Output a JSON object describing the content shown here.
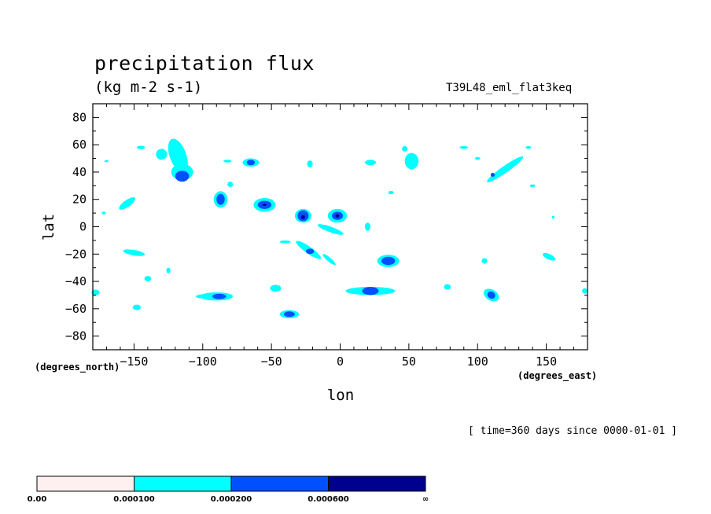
{
  "chart_data": {
    "type": "contour",
    "title": "precipitation flux",
    "units": "(kg m-2 s-1)",
    "experiment": "T39L48_eml_flat3keq",
    "xlabel": "lon",
    "ylabel": "lat",
    "x_unit": "(degrees_east)",
    "y_unit": "(degrees_north)",
    "xlim": [
      -180,
      180
    ],
    "ylim": [
      -90,
      90
    ],
    "x_ticks": [
      -150,
      -100,
      -50,
      0,
      50,
      100,
      150
    ],
    "y_ticks": [
      80,
      60,
      40,
      20,
      0,
      -20,
      -40,
      -60,
      -80
    ],
    "time_note": "[ time=360 days since 0000-01-01 ]",
    "colorbar": {
      "colors": [
        "#fff0f0",
        "#00ffff",
        "#0050ff",
        "#000090"
      ],
      "labels": [
        "0.00",
        "0.000100",
        "0.000200",
        "0.000600",
        "∞"
      ]
    },
    "features": [
      {
        "lon": -118,
        "lat": 52,
        "rx": 6,
        "ry": 13,
        "rot": -20,
        "level": 1
      },
      {
        "lon": -115,
        "lat": 40,
        "rx": 8,
        "ry": 6,
        "rot": 0,
        "level": 1
      },
      {
        "lon": -115,
        "lat": 37,
        "rx": 5,
        "ry": 4,
        "rot": 0,
        "level": 2
      },
      {
        "lon": -130,
        "lat": 53,
        "rx": 4,
        "ry": 4,
        "rot": 0,
        "level": 1
      },
      {
        "lon": -145,
        "lat": 58,
        "rx": 3,
        "ry": 1.2,
        "rot": 0,
        "level": 1
      },
      {
        "lon": -155,
        "lat": 17,
        "rx": 7,
        "ry": 2.5,
        "rot": -35,
        "level": 1
      },
      {
        "lon": -87,
        "lat": 20,
        "rx": 5,
        "ry": 6,
        "rot": 0,
        "level": 1
      },
      {
        "lon": -87,
        "lat": 20,
        "rx": 3,
        "ry": 4,
        "rot": 0,
        "level": 2
      },
      {
        "lon": -80,
        "lat": 31,
        "rx": 2,
        "ry": 2,
        "rot": 0,
        "level": 1
      },
      {
        "lon": -65,
        "lat": 47,
        "rx": 6,
        "ry": 3,
        "rot": 0,
        "level": 1
      },
      {
        "lon": -65,
        "lat": 47,
        "rx": 3,
        "ry": 2,
        "rot": 0,
        "level": 2
      },
      {
        "lon": -55,
        "lat": 16,
        "rx": 8,
        "ry": 5,
        "rot": 0,
        "level": 1
      },
      {
        "lon": -55,
        "lat": 16,
        "rx": 5,
        "ry": 3,
        "rot": 0,
        "level": 2
      },
      {
        "lon": -55,
        "lat": 16,
        "rx": 1.5,
        "ry": 0.8,
        "rot": 0,
        "level": 3
      },
      {
        "lon": -27,
        "lat": 8,
        "rx": 6,
        "ry": 5,
        "rot": 0,
        "level": 1
      },
      {
        "lon": -27,
        "lat": 8,
        "rx": 4,
        "ry": 4,
        "rot": 0,
        "level": 2
      },
      {
        "lon": -27,
        "lat": 7,
        "rx": 1.5,
        "ry": 1.5,
        "rot": 0,
        "level": 3
      },
      {
        "lon": -2,
        "lat": 8,
        "rx": 7,
        "ry": 5,
        "rot": 0,
        "level": 1
      },
      {
        "lon": -2,
        "lat": 8,
        "rx": 4,
        "ry": 3,
        "rot": 0,
        "level": 2
      },
      {
        "lon": -2,
        "lat": 8,
        "rx": 1.5,
        "ry": 1.2,
        "rot": 0,
        "level": 3
      },
      {
        "lon": -7,
        "lat": -2,
        "rx": 10,
        "ry": 2,
        "rot": 20,
        "level": 1
      },
      {
        "lon": -23,
        "lat": -17,
        "rx": 11,
        "ry": 2.5,
        "rot": 35,
        "level": 1
      },
      {
        "lon": -22,
        "lat": -18,
        "rx": 3,
        "ry": 2,
        "rot": 0,
        "level": 2
      },
      {
        "lon": -8,
        "lat": -24,
        "rx": 6,
        "ry": 1.5,
        "rot": 40,
        "level": 1
      },
      {
        "lon": 35,
        "lat": -25,
        "rx": 8,
        "ry": 4.5,
        "rot": 0,
        "level": 1
      },
      {
        "lon": 35,
        "lat": -25,
        "rx": 5,
        "ry": 3,
        "rot": 0,
        "level": 2
      },
      {
        "lon": 22,
        "lat": -47,
        "rx": 18,
        "ry": 3,
        "rot": 0,
        "level": 1
      },
      {
        "lon": 22,
        "lat": -47,
        "rx": 6,
        "ry": 3,
        "rot": 0,
        "level": 2
      },
      {
        "lon": -90,
        "lat": -51,
        "rx": 12,
        "ry": 3,
        "rot": 0,
        "level": 1
      },
      {
        "lon": -88,
        "lat": -51,
        "rx": 5,
        "ry": 2,
        "rot": 0,
        "level": 2
      },
      {
        "lon": -37,
        "lat": -64,
        "rx": 7,
        "ry": 3,
        "rot": 0,
        "level": 1
      },
      {
        "lon": -37,
        "lat": -64,
        "rx": 4,
        "ry": 2,
        "rot": 0,
        "level": 2
      },
      {
        "lon": 110,
        "lat": -50,
        "rx": 6,
        "ry": 4,
        "rot": 30,
        "level": 1
      },
      {
        "lon": 110,
        "lat": -50,
        "rx": 3,
        "ry": 2.5,
        "rot": 30,
        "level": 2
      },
      {
        "lon": 52,
        "lat": 48,
        "rx": 5,
        "ry": 6,
        "rot": 0,
        "level": 1
      },
      {
        "lon": 47,
        "lat": 57,
        "rx": 2,
        "ry": 2,
        "rot": 0,
        "level": 1
      },
      {
        "lon": 120,
        "lat": 42,
        "rx": 16,
        "ry": 2.5,
        "rot": -35,
        "level": 1
      },
      {
        "lon": 111,
        "lat": 38,
        "rx": 1.5,
        "ry": 1.5,
        "rot": 0,
        "level": 2
      },
      {
        "lon": -150,
        "lat": -19,
        "rx": 8,
        "ry": 2,
        "rot": 10,
        "level": 1
      },
      {
        "lon": -140,
        "lat": -38,
        "rx": 2.5,
        "ry": 2,
        "rot": 0,
        "level": 1
      },
      {
        "lon": -125,
        "lat": -32,
        "rx": 1.5,
        "ry": 2,
        "rot": 0,
        "level": 1
      },
      {
        "lon": -148,
        "lat": -59,
        "rx": 3,
        "ry": 2,
        "rot": 0,
        "level": 1
      },
      {
        "lon": -178,
        "lat": -48,
        "rx": 3,
        "ry": 2,
        "rot": 0,
        "level": 1
      },
      {
        "lon": -47,
        "lat": -45,
        "rx": 4,
        "ry": 2.5,
        "rot": 0,
        "level": 1
      },
      {
        "lon": 22,
        "lat": 47,
        "rx": 4,
        "ry": 2,
        "rot": 0,
        "level": 1
      },
      {
        "lon": -22,
        "lat": 46,
        "rx": 2,
        "ry": 2.5,
        "rot": 0,
        "level": 1
      },
      {
        "lon": 90,
        "lat": 58,
        "rx": 3,
        "ry": 1,
        "rot": 0,
        "level": 1
      },
      {
        "lon": 137,
        "lat": 58,
        "rx": 2,
        "ry": 1,
        "rot": 0,
        "level": 1
      },
      {
        "lon": 100,
        "lat": 50,
        "rx": 2,
        "ry": 1,
        "rot": 0,
        "level": 1
      },
      {
        "lon": 37,
        "lat": 25,
        "rx": 2,
        "ry": 1.2,
        "rot": 0,
        "level": 1
      },
      {
        "lon": 20,
        "lat": 0,
        "rx": 2,
        "ry": 3,
        "rot": 0,
        "level": 1
      },
      {
        "lon": 105,
        "lat": -25,
        "rx": 2,
        "ry": 2,
        "rot": 0,
        "level": 1
      },
      {
        "lon": 152,
        "lat": -22,
        "rx": 5,
        "ry": 2,
        "rot": 25,
        "level": 1
      },
      {
        "lon": 78,
        "lat": -44,
        "rx": 2.5,
        "ry": 2,
        "rot": 0,
        "level": 1
      },
      {
        "lon": 178,
        "lat": -47,
        "rx": 2,
        "ry": 2,
        "rot": 0,
        "level": 1
      },
      {
        "lon": 155,
        "lat": 7,
        "rx": 1,
        "ry": 1,
        "rot": 0,
        "level": 1
      },
      {
        "lon": 140,
        "lat": 30,
        "rx": 2,
        "ry": 1,
        "rot": 0,
        "level": 1
      },
      {
        "lon": -82,
        "lat": 48,
        "rx": 3,
        "ry": 1,
        "rot": 0,
        "level": 1
      },
      {
        "lon": -172,
        "lat": 10,
        "rx": 1.5,
        "ry": 1,
        "rot": 0,
        "level": 1
      },
      {
        "lon": -170,
        "lat": 48,
        "rx": 1.5,
        "ry": 0.8,
        "rot": 0,
        "level": 1
      },
      {
        "lon": -100,
        "lat": -51,
        "rx": 5,
        "ry": 1.5,
        "rot": 0,
        "level": 1
      },
      {
        "lon": -40,
        "lat": -11,
        "rx": 4,
        "ry": 1,
        "rot": 0,
        "level": 1
      }
    ]
  }
}
